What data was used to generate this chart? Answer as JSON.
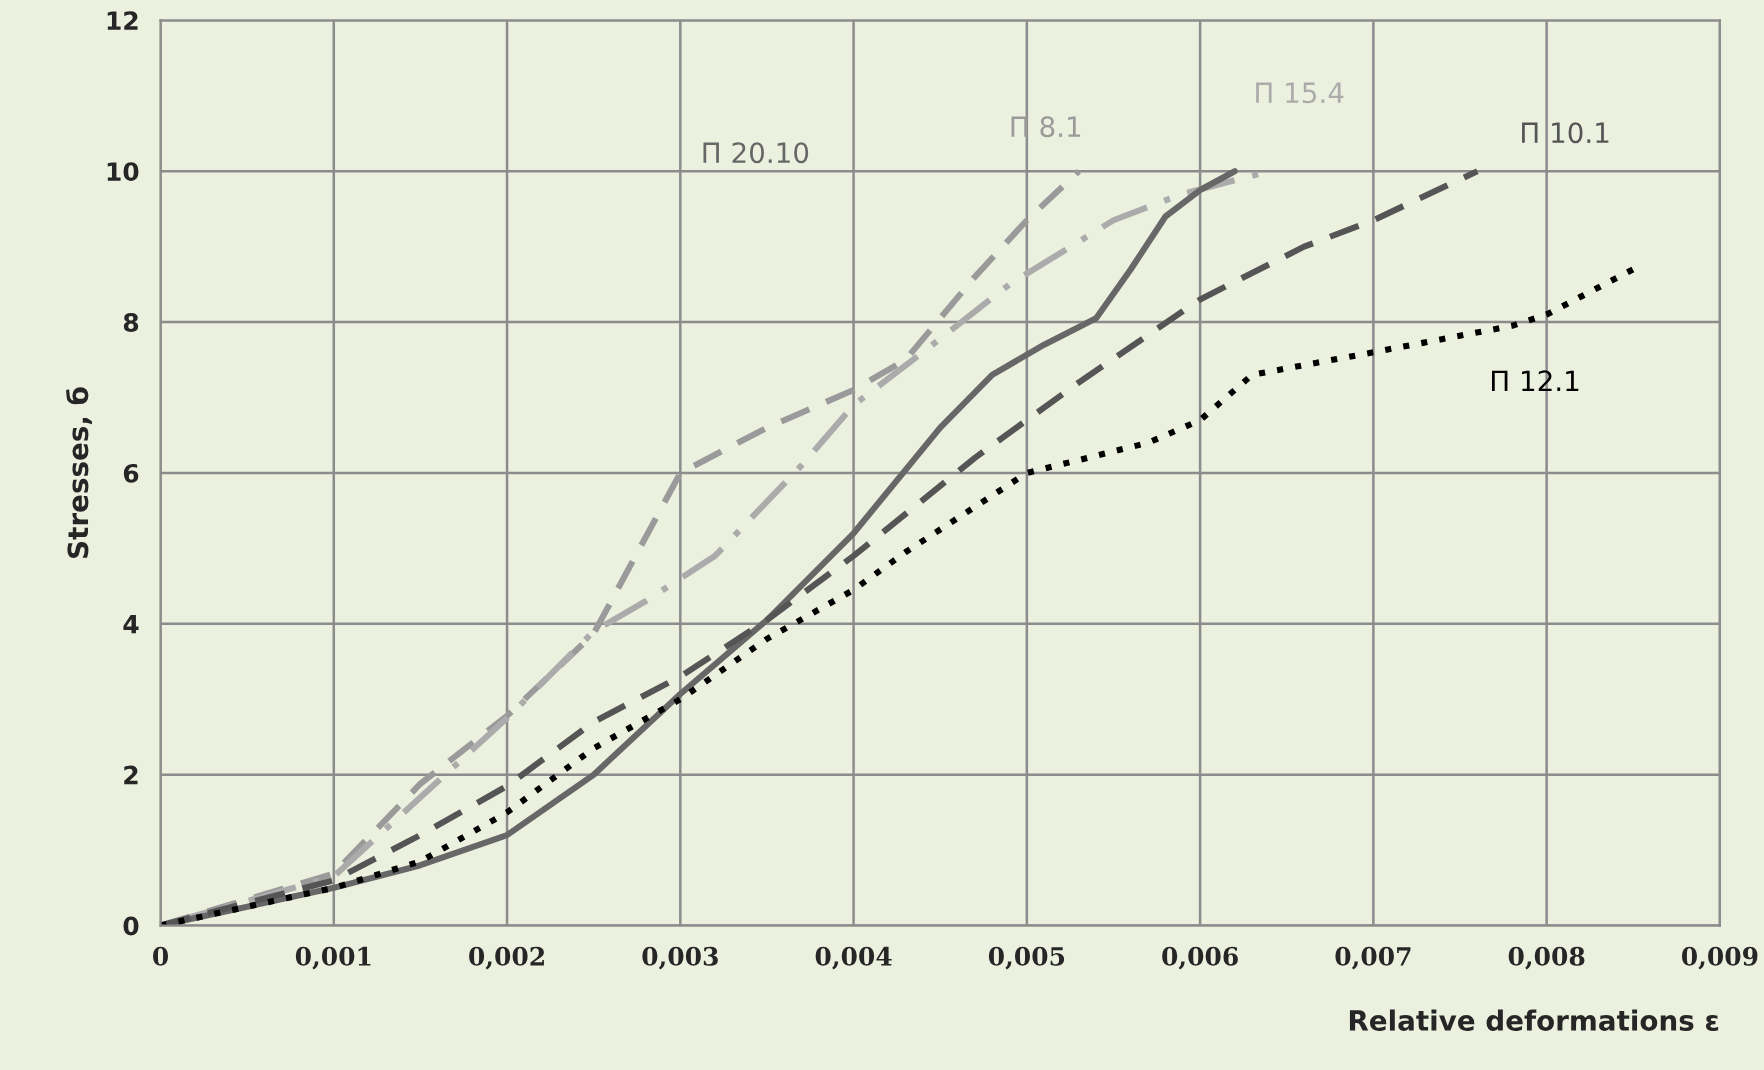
{
  "chart_data": {
    "type": "line",
    "xlabel": "Relative deformations ε",
    "ylabel": "Stresses, б",
    "xlim": [
      0,
      0.009
    ],
    "ylim": [
      0,
      12
    ],
    "xticks": [
      {
        "value": 0,
        "label": "0"
      },
      {
        "value": 0.001,
        "label": "0,001"
      },
      {
        "value": 0.002,
        "label": "0,002"
      },
      {
        "value": 0.003,
        "label": "0,003"
      },
      {
        "value": 0.004,
        "label": "0,004"
      },
      {
        "value": 0.005,
        "label": "0,005"
      },
      {
        "value": 0.006,
        "label": "0,006"
      },
      {
        "value": 0.007,
        "label": "0,007"
      },
      {
        "value": 0.008,
        "label": "0,008"
      },
      {
        "value": 0.009,
        "label": "0,009"
      }
    ],
    "yticks": [
      0,
      2,
      4,
      6,
      8,
      10,
      12
    ],
    "grid": true,
    "marker": "none",
    "series": [
      {
        "name": "П 8.1",
        "color": "#9a9a9a",
        "line_style": "dashed",
        "x": [
          0,
          0.001,
          0.0015,
          0.002,
          0.0025,
          0.003,
          0.0035,
          0.004,
          0.0043,
          0.0047,
          0.005,
          0.0053
        ],
        "values": [
          0,
          0.69,
          1.88,
          2.78,
          3.87,
          6.0,
          6.6,
          7.1,
          7.5,
          8.6,
          9.35,
          10.0
        ]
      },
      {
        "name": "П 15.4",
        "color": "#ababab",
        "line_style": "dashdot",
        "x": [
          0,
          0.001,
          0.0015,
          0.002,
          0.0025,
          0.0028,
          0.0032,
          0.0037,
          0.004,
          0.0044,
          0.0049,
          0.0055,
          0.0059,
          0.0064
        ],
        "values": [
          0,
          0.65,
          1.7,
          2.75,
          3.9,
          4.3,
          4.9,
          6.1,
          6.9,
          7.6,
          8.5,
          9.35,
          9.7,
          10.0
        ]
      },
      {
        "name": "П 20.10",
        "color": "#676767",
        "line_style": "solid",
        "x": [
          0,
          0.001,
          0.0015,
          0.002,
          0.0025,
          0.003,
          0.0035,
          0.004,
          0.0045,
          0.0048,
          0.0051,
          0.0054,
          0.0056,
          0.0058,
          0.006,
          0.0062
        ],
        "values": [
          0,
          0.5,
          0.8,
          1.2,
          2.0,
          3.07,
          4.05,
          5.2,
          6.6,
          7.3,
          7.7,
          8.05,
          8.7,
          9.4,
          9.75,
          10.0
        ]
      },
      {
        "name": "П 10.1",
        "color": "#555555",
        "line_style": "dashed",
        "x": [
          0,
          0.001,
          0.0015,
          0.002,
          0.0025,
          0.003,
          0.0035,
          0.004,
          0.0047,
          0.0053,
          0.006,
          0.0066,
          0.007,
          0.0076
        ],
        "values": [
          0,
          0.6,
          1.2,
          1.85,
          2.7,
          3.3,
          4.05,
          4.9,
          6.2,
          7.2,
          8.3,
          9.0,
          9.35,
          10.0
        ]
      },
      {
        "name": "П 12.1",
        "color": "#000000",
        "line_style": "dotted",
        "x": [
          0,
          0.001,
          0.0015,
          0.002,
          0.0025,
          0.003,
          0.0035,
          0.004,
          0.0043,
          0.0047,
          0.005,
          0.0057,
          0.006,
          0.0063,
          0.007,
          0.0078,
          0.008,
          0.0085
        ],
        "values": [
          0,
          0.5,
          0.85,
          1.5,
          2.35,
          3.0,
          3.8,
          4.45,
          4.95,
          5.55,
          6.0,
          6.4,
          6.7,
          7.3,
          7.6,
          7.95,
          8.1,
          8.7
        ]
      }
    ]
  }
}
